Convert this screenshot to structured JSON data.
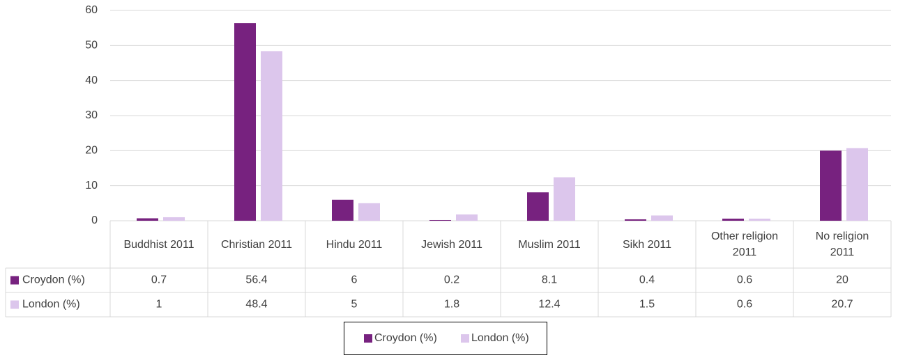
{
  "chart_data": {
    "type": "bar",
    "categories": [
      "Buddhist 2011",
      "Christian 2011",
      "Hindu 2011",
      "Jewish 2011",
      "Muslim 2011",
      "Sikh 2011",
      "Other religion 2011",
      "No religion 2011"
    ],
    "series": [
      {
        "name": "Croydon (%)",
        "color": "#77227f",
        "values": [
          0.7,
          56.4,
          6,
          0.2,
          8.1,
          0.4,
          0.6,
          20
        ]
      },
      {
        "name": "London (%)",
        "color": "#dcc6ec",
        "values": [
          1,
          48.4,
          5,
          1.8,
          12.4,
          1.5,
          0.6,
          20.7
        ]
      }
    ],
    "ylim": [
      0,
      60
    ],
    "yticks": [
      0,
      10,
      20,
      30,
      40,
      50,
      60
    ],
    "grid": true,
    "legend": "bottom"
  }
}
